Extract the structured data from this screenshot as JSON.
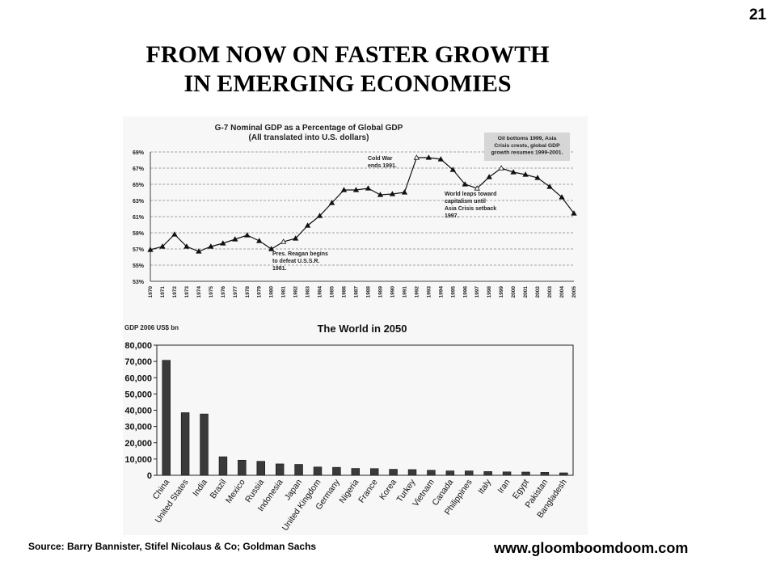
{
  "page_number": "21",
  "title_line1": "FROM NOW ON FASTER GROWTH",
  "title_line2": "IN EMERGING ECONOMIES",
  "source": "Source: Barry Bannister, Stifel Nicolaus & Co; Goldman Sachs",
  "website": "www.gloomboomdoom.com",
  "chart_data": [
    {
      "type": "line",
      "title": "G-7 Nominal GDP as a Percentage of Global GDP",
      "subtitle": "(All translated into U.S. dollars)",
      "xlabel": "",
      "ylabel": "",
      "y_tick_labels": [
        "53%",
        "55%",
        "57%",
        "59%",
        "61%",
        "63%",
        "65%",
        "67%",
        "69%"
      ],
      "ylim": [
        53,
        69
      ],
      "grid": true,
      "x": [
        "1970",
        "1971",
        "1972",
        "1973",
        "1974",
        "1975",
        "1976",
        "1977",
        "1978",
        "1979",
        "1980",
        "1981",
        "1982",
        "1983",
        "1984",
        "1985",
        "1986",
        "1987",
        "1988",
        "1989",
        "1990",
        "1991",
        "1992",
        "1993",
        "1994",
        "1995",
        "1996",
        "1997",
        "1998",
        "1999",
        "2000",
        "2001",
        "2002",
        "2003",
        "2004",
        "2005"
      ],
      "series": [
        {
          "values": [
            56.9,
            57.3,
            58.8,
            57.3,
            56.7,
            57.3,
            57.7,
            58.2,
            58.7,
            58.0,
            57.0,
            57.9,
            58.3,
            59.9,
            61.1,
            62.7,
            64.3,
            64.3,
            64.5,
            63.7,
            63.8,
            64.0,
            68.3,
            68.3,
            68.1,
            66.8,
            65.0,
            64.5,
            65.9,
            67.0,
            66.5,
            66.2,
            65.8,
            64.7,
            63.4,
            61.4
          ]
        }
      ],
      "annotations": [
        {
          "text": "Pres. Reagan begins\nto defeat U.S.S.R.\n1981."
        },
        {
          "text": "Cold War\nends 1991."
        },
        {
          "text": "World leaps toward\ncapitalism until\nAsia Crisis setback\n1997."
        },
        {
          "text": "Oil bottoms 1999, Asia\nCrisis crests, global GDP\ngrowth resumes 1999-2001."
        }
      ]
    },
    {
      "type": "bar",
      "title": "The World in 2050",
      "ylabel": "GDP 2006 US$ bn",
      "xlabel": "",
      "ylim": [
        0,
        80000
      ],
      "y_tick_labels": [
        "0",
        "10,000",
        "20,000",
        "30,000",
        "40,000",
        "50,000",
        "60,000",
        "70,000",
        "80,000"
      ],
      "categories": [
        "China",
        "United States",
        "India",
        "Brazil",
        "Mexico",
        "Russia",
        "Indonesia",
        "Japan",
        "United Kingdom",
        "Germany",
        "Nigeria",
        "France",
        "Korea",
        "Turkey",
        "Vietnam",
        "Canada",
        "Philippines",
        "Italy",
        "Iran",
        "Egypt",
        "Pakistan",
        "Bangladesh"
      ],
      "values": [
        70700,
        38500,
        37700,
        11400,
        9300,
        8600,
        7000,
        6700,
        5100,
        4900,
        4200,
        4100,
        3700,
        3500,
        3100,
        2700,
        2700,
        2300,
        2100,
        2000,
        1800,
        1500
      ]
    }
  ]
}
